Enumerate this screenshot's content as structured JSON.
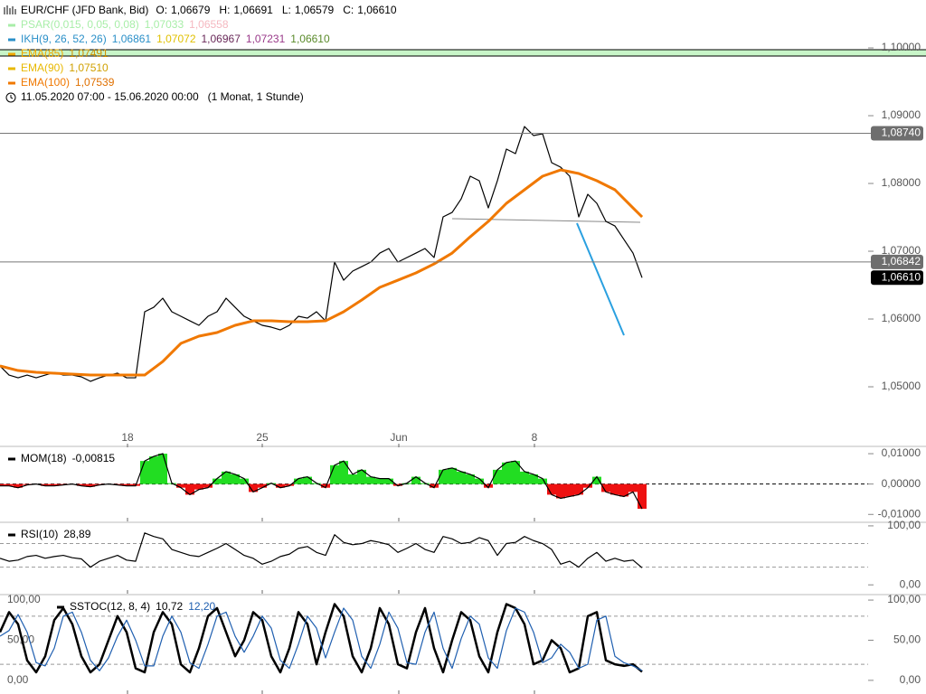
{
  "chart_data": [
    {
      "type": "line",
      "title": "EUR/CHF (JFD Bank, Bid)",
      "quote": [
        {
          "label": "O:",
          "value": "1,06679"
        },
        {
          "label": "H:",
          "value": "1,06691"
        },
        {
          "label": "L:",
          "value": "1,06579"
        },
        {
          "label": "C:",
          "value": "1,06610"
        }
      ],
      "period": "11.05.2020 07:00 - 15.06.2020 00:00",
      "resolution": "(1 Monat, 1 Stunde)",
      "indicators": [
        {
          "name": "PSAR(0,015, 0,05, 0,08)",
          "color": "#a8eea8",
          "readings": [
            {
              "text": "1,07033",
              "color": "#a8eea8"
            },
            {
              "text": "1,06558",
              "color": "#f5b8c0"
            }
          ]
        },
        {
          "name": "IKH(9, 26, 52, 26)",
          "color": "#2a8fc8",
          "readings": [
            {
              "text": "1,06861",
              "color": "#2a8fc8"
            },
            {
              "text": "1,07072",
              "color": "#e0c000"
            },
            {
              "text": "1,06967",
              "color": "#6a2a5a"
            },
            {
              "text": "1,07231",
              "color": "#9a3a8a"
            },
            {
              "text": "1,06610",
              "color": "#5a8a2a"
            }
          ]
        }
      ],
      "xlim": [
        0,
        96
      ],
      "xticks": [
        {
          "value": 14.1,
          "label": "18"
        },
        {
          "value": 29,
          "label": "25"
        },
        {
          "value": 44.1,
          "label": "Jun"
        },
        {
          "value": 59.1,
          "label": "8"
        }
      ],
      "ylim": [
        1.04107,
        1.10707
      ],
      "yticks": [
        {
          "value": 1.05,
          "label": "1,05000"
        },
        {
          "value": 1.06,
          "label": "1,06000"
        },
        {
          "value": 1.07,
          "label": "1,07000"
        },
        {
          "value": 1.08,
          "label": "1,08000"
        },
        {
          "value": 1.09,
          "label": "1,09000"
        },
        {
          "value": 1.1,
          "label": "1,10000"
        }
      ],
      "levels": [
        {
          "value": 1.0874,
          "label": "1,08740"
        },
        {
          "value": 1.06842,
          "label": "1,06842"
        }
      ],
      "last": {
        "value": 1.0661,
        "label": "1,06610"
      },
      "series": [
        {
          "color": "#000000",
          "values": [
            1.05307,
            1.05173,
            1.05133,
            1.05173,
            1.05133,
            1.05173,
            1.05213,
            1.05173,
            1.05173,
            1.05147,
            1.0508,
            1.05133,
            1.05173,
            1.052,
            1.05133,
            1.05133,
            1.06107,
            1.06173,
            1.06307,
            1.06107,
            1.0604,
            1.05973,
            1.05907,
            1.0604,
            1.06107,
            1.06307,
            1.06173,
            1.0604,
            1.05973,
            1.05907,
            1.0588,
            1.0584,
            1.05907,
            1.0604,
            1.06013,
            1.06107,
            1.05973,
            1.0684,
            1.06573,
            1.06707,
            1.06773,
            1.0684,
            1.06973,
            1.0704,
            1.0684,
            1.06907,
            1.06973,
            1.0704,
            1.06907,
            1.07507,
            1.07573,
            1.07773,
            1.08107,
            1.0804,
            1.0764,
            1.0804,
            1.08507,
            1.0844,
            1.0884,
            1.08707,
            1.08733,
            1.08307,
            1.0824,
            1.08107,
            1.07507,
            1.0784,
            1.07707,
            1.0744,
            1.07373,
            1.07173,
            1.06973,
            1.0661
          ]
        },
        {
          "name": "EMA(85)",
          "color": "#f0a800",
          "reading": {
            "text": "1,07491",
            "color": "#d09000"
          },
          "x": [
            0,
            2,
            4,
            6,
            8,
            10,
            12,
            14,
            16,
            18,
            20,
            22,
            24,
            26,
            28,
            30,
            32,
            34,
            36,
            38,
            40,
            42,
            44,
            46,
            48,
            50,
            52,
            54,
            56,
            58,
            60,
            62,
            64,
            66,
            68,
            70,
            71
          ],
          "values": [
            1.05307,
            1.0524,
            1.05213,
            1.052,
            1.05187,
            1.05173,
            1.05173,
            1.05173,
            1.05173,
            1.05373,
            1.0564,
            1.05747,
            1.058,
            1.05907,
            1.05973,
            1.05973,
            1.0596,
            1.0596,
            1.05973,
            1.06107,
            1.0628,
            1.06467,
            1.06573,
            1.0668,
            1.06813,
            1.06973,
            1.07213,
            1.0744,
            1.07707,
            1.07907,
            1.08107,
            1.082,
            1.08147,
            1.0804,
            1.07907,
            1.0764,
            1.07507
          ]
        },
        {
          "name": "EMA(90)",
          "color": "#e8b800",
          "reading": {
            "text": "1,07510",
            "color": "#d0a000"
          },
          "x": [
            0,
            2,
            4,
            6,
            8,
            10,
            12,
            14,
            16,
            18,
            20,
            22,
            24,
            26,
            28,
            30,
            32,
            34,
            36,
            38,
            40,
            42,
            44,
            46,
            48,
            50,
            52,
            54,
            56,
            58,
            60,
            62,
            64,
            66,
            68,
            70,
            71
          ],
          "values": [
            1.05307,
            1.0524,
            1.05213,
            1.052,
            1.05187,
            1.05173,
            1.05173,
            1.05173,
            1.05173,
            1.05373,
            1.0564,
            1.05747,
            1.058,
            1.05907,
            1.05973,
            1.05973,
            1.0596,
            1.0596,
            1.05973,
            1.06107,
            1.0628,
            1.06467,
            1.06573,
            1.0668,
            1.06813,
            1.06973,
            1.07213,
            1.0744,
            1.07707,
            1.07907,
            1.08107,
            1.082,
            1.08147,
            1.0804,
            1.07907,
            1.0764,
            1.07507
          ]
        },
        {
          "name": "EMA(100)",
          "color": "#f07800",
          "reading": {
            "text": "1,07539",
            "color": "#e07000"
          },
          "x": [
            0,
            2,
            4,
            6,
            8,
            10,
            12,
            14,
            16,
            18,
            20,
            22,
            24,
            26,
            28,
            30,
            32,
            34,
            36,
            38,
            40,
            42,
            44,
            46,
            48,
            50,
            52,
            54,
            56,
            58,
            60,
            62,
            64,
            66,
            68,
            70,
            71
          ],
          "values": [
            1.05307,
            1.0524,
            1.05213,
            1.052,
            1.05187,
            1.05173,
            1.05173,
            1.05173,
            1.05173,
            1.05373,
            1.0564,
            1.05747,
            1.058,
            1.05907,
            1.05973,
            1.05973,
            1.0596,
            1.0596,
            1.05973,
            1.06107,
            1.0628,
            1.06467,
            1.06573,
            1.0668,
            1.06813,
            1.06973,
            1.07213,
            1.0744,
            1.07707,
            1.07907,
            1.08107,
            1.082,
            1.08147,
            1.0804,
            1.07907,
            1.0764,
            1.07507
          ]
        }
      ]
    },
    {
      "type": "area",
      "title": "MOM(18)",
      "readings": [
        {
          "text": "-0,00815",
          "color": "#000000"
        }
      ],
      "up_color": "#22dd22",
      "down_color": "#ee1111",
      "color": "#000000",
      "ylim": [
        -0.0123,
        0.0121
      ],
      "yticks": [
        {
          "value": -0.01,
          "label": "-0,01000"
        },
        {
          "value": 0,
          "label": "0,00000"
        },
        {
          "value": 0.01,
          "label": "0,01000"
        }
      ],
      "values": [
        -0.0006,
        -0.0006,
        -0.0012,
        -0.0003,
        0,
        -0.0006,
        -0.0006,
        -0.0003,
        0,
        -0.0006,
        -0.0009,
        -0.0003,
        0,
        -0.0003,
        -0.0006,
        -0.0006,
        0.0076,
        0.0091,
        0.01,
        0.0003,
        -0.0012,
        -0.0035,
        -0.0018,
        -0.0012,
        0.0018,
        0.0041,
        0.0032,
        0.0018,
        -0.0026,
        -0.0012,
        0.0003,
        -0.0012,
        -0.0006,
        0.0018,
        0.0024,
        0.0003,
        -0.0012,
        0.0062,
        0.0076,
        0.0032,
        0.0047,
        0.0024,
        0.0018,
        0.0018,
        -0.0006,
        0.0003,
        0.0024,
        0.0003,
        -0.0012,
        0.0047,
        0.0053,
        0.0041,
        0.0032,
        0.0018,
        -0.0012,
        0.0047,
        0.0071,
        0.0076,
        0.0041,
        0.0032,
        0.0018,
        -0.0035,
        -0.0047,
        -0.0041,
        -0.0035,
        -0.0012,
        0.0024,
        -0.0026,
        -0.0035,
        -0.0041,
        -0.0026,
        -0.00815
      ]
    },
    {
      "type": "line",
      "title": "RSI(10)",
      "readings": [
        {
          "text": "28,89",
          "color": "#000000"
        }
      ],
      "ylim": [
        -15,
        104.5
      ],
      "yticks": [
        {
          "value": 0,
          "label": "0,00"
        },
        {
          "value": 100,
          "label": "100,00"
        }
      ],
      "levels": [
        30,
        70
      ],
      "series": [
        {
          "color": "#000000",
          "values": [
            45,
            40,
            42,
            48,
            50,
            45,
            48,
            50,
            46,
            44,
            30,
            40,
            45,
            50,
            42,
            40,
            88,
            82,
            78,
            60,
            55,
            50,
            48,
            55,
            62,
            70,
            60,
            50,
            45,
            35,
            40,
            48,
            52,
            62,
            65,
            55,
            50,
            85,
            72,
            68,
            70,
            75,
            72,
            68,
            55,
            62,
            70,
            60,
            55,
            82,
            78,
            70,
            72,
            80,
            75,
            50,
            70,
            72,
            82,
            75,
            70,
            60,
            35,
            40,
            30,
            45,
            55,
            40,
            45,
            40,
            42,
            28.89
          ]
        }
      ]
    },
    {
      "type": "line",
      "title": "SSTOC(12, 8, 4)",
      "readings": [
        {
          "text": "10,72",
          "color": "#000000"
        },
        {
          "text": "12,20",
          "color": "#1f5fb0"
        }
      ],
      "ylim": [
        -17,
        105.7
      ],
      "yticks": [
        {
          "value": 0,
          "label": "0,00"
        },
        {
          "value": 50,
          "label": "50,00"
        },
        {
          "value": 100,
          "label": "100,00"
        }
      ],
      "left_ticks": true,
      "levels": [
        20,
        80
      ],
      "series": [
        {
          "color": "#000000",
          "values": [
            60,
            85,
            70,
            25,
            10,
            30,
            75,
            90,
            70,
            30,
            10,
            20,
            50,
            80,
            60,
            15,
            10,
            60,
            85,
            70,
            20,
            10,
            40,
            80,
            90,
            60,
            30,
            50,
            85,
            75,
            30,
            10,
            40,
            85,
            70,
            20,
            60,
            95,
            80,
            30,
            10,
            40,
            90,
            70,
            20,
            15,
            60,
            90,
            40,
            10,
            50,
            85,
            75,
            30,
            10,
            60,
            95,
            90,
            70,
            20,
            25,
            50,
            40,
            10,
            15,
            80,
            85,
            25,
            20,
            18,
            20,
            10.72
          ]
        },
        {
          "color": "#1f5fb0",
          "values": [
            55,
            62,
            82,
            60,
            22,
            18,
            40,
            80,
            85,
            60,
            25,
            12,
            28,
            55,
            75,
            50,
            18,
            18,
            55,
            80,
            60,
            22,
            15,
            45,
            80,
            85,
            55,
            35,
            55,
            80,
            65,
            25,
            15,
            45,
            80,
            65,
            28,
            60,
            90,
            75,
            30,
            15,
            45,
            85,
            65,
            22,
            20,
            60,
            85,
            40,
            15,
            52,
            80,
            70,
            28,
            15,
            62,
            90,
            85,
            60,
            22,
            28,
            45,
            35,
            15,
            20,
            75,
            80,
            30,
            22,
            18,
            12.2
          ]
        }
      ]
    }
  ]
}
